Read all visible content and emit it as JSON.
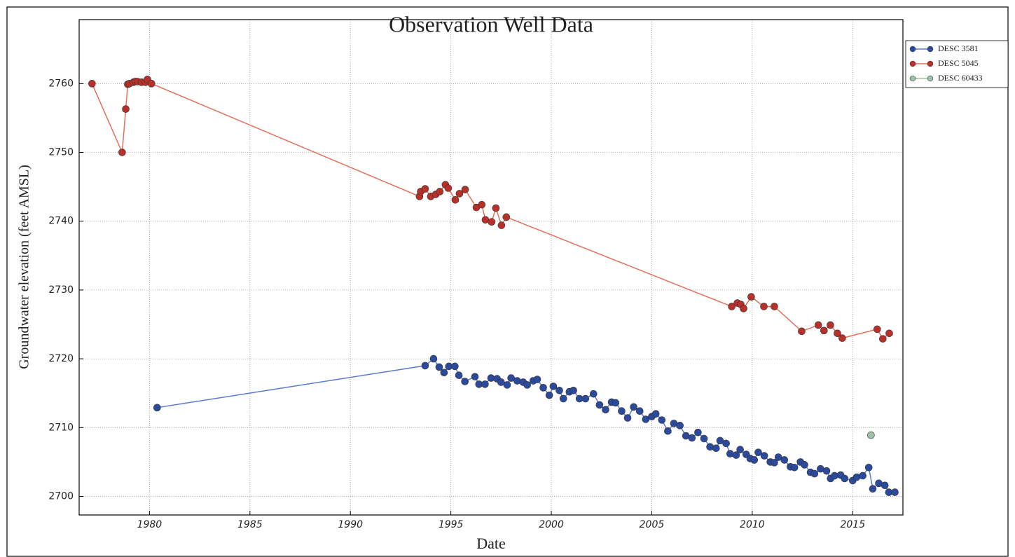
{
  "chart_data": {
    "type": "line",
    "title": "Observation Well Data",
    "x_label": "Date",
    "y_label": "Groundwater elevation (feet AMSL)",
    "xlim": [
      1976.5,
      2017.5
    ],
    "ylim": [
      2697.3,
      2769.3
    ],
    "xticks": [
      1980,
      1985,
      1990,
      1995,
      2000,
      2005,
      2010,
      2015
    ],
    "yticks": [
      2700,
      2710,
      2720,
      2730,
      2740,
      2750,
      2760
    ],
    "grid": true,
    "legend": "outside-right",
    "series": [
      {
        "name": "DESC  3581",
        "color": "#2b4a9c",
        "line_color": "#5a7ad0",
        "x": [
          1980.38,
          1993.72,
          1994.14,
          1994.42,
          1994.66,
          1994.9,
          1995.2,
          1995.4,
          1995.7,
          1996.2,
          1996.4,
          1996.7,
          1997.0,
          1997.3,
          1997.5,
          1997.8,
          1998.0,
          1998.3,
          1998.6,
          1998.8,
          1999.1,
          1999.3,
          1999.6,
          1999.9,
          2000.1,
          2000.4,
          2000.6,
          2000.9,
          2001.1,
          2001.4,
          2001.7,
          2002.1,
          2002.4,
          2002.7,
          2003.0,
          2003.2,
          2003.5,
          2003.8,
          2004.1,
          2004.4,
          2004.7,
          2005.0,
          2005.2,
          2005.5,
          2005.8,
          2006.1,
          2006.4,
          2006.7,
          2007.0,
          2007.3,
          2007.6,
          2007.9,
          2008.2,
          2008.4,
          2008.7,
          2008.9,
          2009.2,
          2009.4,
          2009.7,
          2009.9,
          2010.1,
          2010.3,
          2010.6,
          2010.9,
          2011.1,
          2011.3,
          2011.6,
          2011.9,
          2012.1,
          2012.4,
          2012.6,
          2012.9,
          2013.1,
          2013.4,
          2013.7,
          2013.9,
          2014.1,
          2014.4,
          2014.6,
          2015.0,
          2015.2,
          2015.5,
          2015.8,
          2016.0,
          2016.3,
          2016.6,
          2016.8,
          2017.1
        ],
        "values": [
          2712.9,
          2719.0,
          2720.0,
          2718.8,
          2718.0,
          2718.9,
          2718.9,
          2717.6,
          2716.7,
          2717.4,
          2716.3,
          2716.3,
          2717.2,
          2717.1,
          2716.6,
          2716.2,
          2717.2,
          2716.8,
          2716.6,
          2716.2,
          2716.8,
          2717.0,
          2715.8,
          2714.7,
          2716.0,
          2715.4,
          2714.2,
          2715.2,
          2715.4,
          2714.2,
          2714.2,
          2714.9,
          2713.3,
          2712.6,
          2713.7,
          2713.6,
          2712.4,
          2711.4,
          2713.0,
          2712.4,
          2711.2,
          2711.6,
          2712.0,
          2711.1,
          2709.5,
          2710.6,
          2710.3,
          2708.8,
          2708.5,
          2709.3,
          2708.4,
          2707.2,
          2707.0,
          2708.1,
          2707.7,
          2706.2,
          2706.0,
          2706.8,
          2706.1,
          2705.5,
          2705.3,
          2706.4,
          2705.9,
          2705.0,
          2704.9,
          2705.7,
          2705.3,
          2704.3,
          2704.2,
          2705.0,
          2704.6,
          2703.5,
          2703.3,
          2704.0,
          2703.7,
          2702.6,
          2703.0,
          2703.1,
          2702.6,
          2702.3,
          2702.8,
          2703.0,
          2704.2,
          2701.1,
          2701.9,
          2701.6,
          2700.6,
          2700.6
        ]
      },
      {
        "name": "DESC  5045",
        "color": "#b8302a",
        "line_color": "#e2705c",
        "x": [
          1977.14,
          1978.64,
          1978.82,
          1978.92,
          1979.0,
          1979.2,
          1979.3,
          1979.4,
          1979.6,
          1979.8,
          1979.9,
          1980.1,
          1993.44,
          1993.5,
          1993.72,
          1994.0,
          1994.25,
          1994.45,
          1994.73,
          1994.87,
          1995.22,
          1995.43,
          1995.71,
          1996.27,
          1996.54,
          1996.72,
          1997.03,
          1997.24,
          1997.52,
          1997.76,
          2008.98,
          2009.26,
          2009.43,
          2009.57,
          2009.95,
          2010.58,
          2011.1,
          2012.46,
          2013.29,
          2013.57,
          2013.89,
          2014.24,
          2014.48,
          2016.22,
          2016.5,
          2016.82
        ],
        "values": [
          2760.0,
          2750.0,
          2756.3,
          2759.9,
          2760.0,
          2760.2,
          2760.3,
          2760.3,
          2760.2,
          2760.2,
          2760.6,
          2760.0,
          2743.6,
          2744.3,
          2744.7,
          2743.6,
          2743.9,
          2744.3,
          2745.3,
          2744.8,
          2743.1,
          2744.0,
          2744.6,
          2742.0,
          2742.4,
          2740.2,
          2739.9,
          2741.9,
          2739.4,
          2740.6,
          2727.6,
          2728.1,
          2727.9,
          2727.3,
          2729.0,
          2727.6,
          2727.6,
          2724.0,
          2724.9,
          2724.1,
          2724.9,
          2723.7,
          2723.0,
          2724.3,
          2722.9,
          2723.7
        ]
      },
      {
        "name": "DESC 60433",
        "color": "#9dc0a6",
        "line_color": "#9dc0a6",
        "x": [
          2015.91
        ],
        "values": [
          2708.9
        ]
      }
    ]
  }
}
